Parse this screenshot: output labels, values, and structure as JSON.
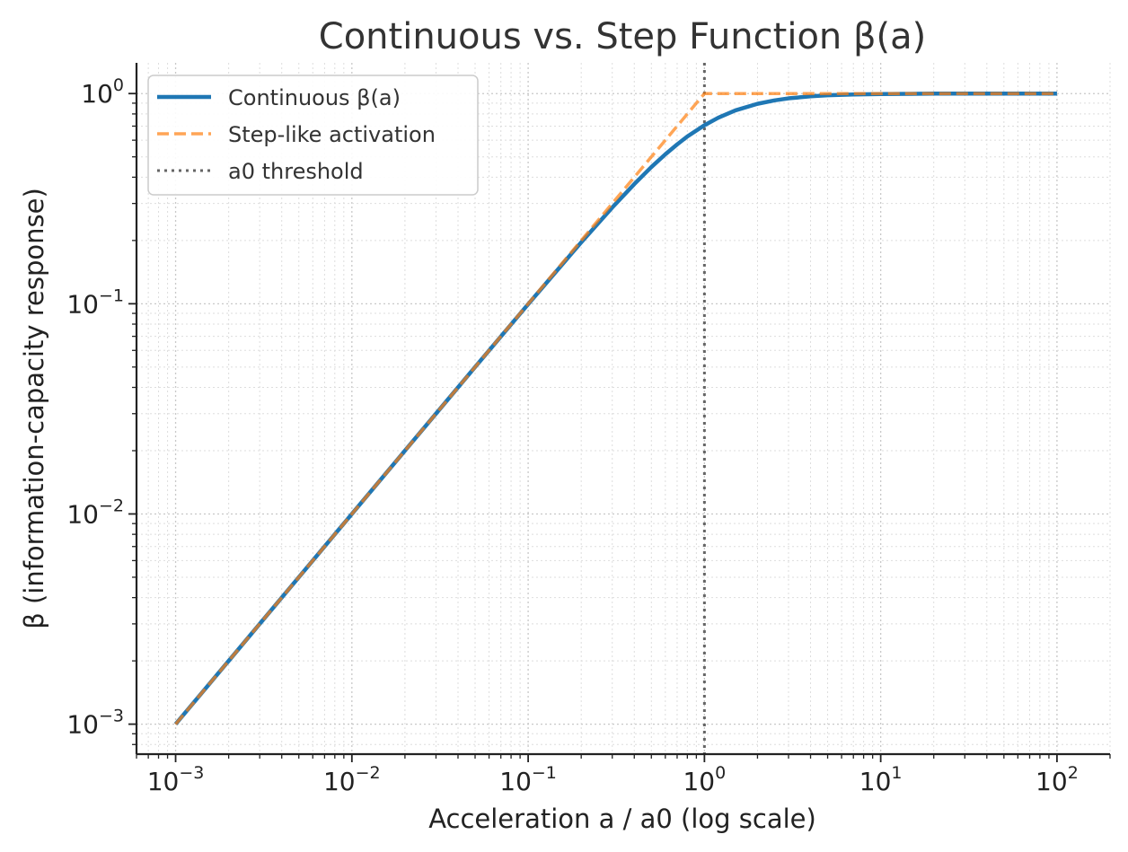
{
  "chart_data": {
    "type": "line",
    "title": "Continuous vs. Step Function β(a)",
    "xlabel": "Acceleration a / a0 (log scale)",
    "ylabel": "β (information-capacity response)",
    "xscale": "log",
    "yscale": "log",
    "xlim": [
      0.0006,
      200
    ],
    "ylim": [
      0.00072,
      1.4
    ],
    "x_ticks": [
      {
        "value": 0.001,
        "base": "10",
        "exp": "−3"
      },
      {
        "value": 0.01,
        "base": "10",
        "exp": "−2"
      },
      {
        "value": 0.1,
        "base": "10",
        "exp": "−1"
      },
      {
        "value": 1,
        "base": "10",
        "exp": "0"
      },
      {
        "value": 10,
        "base": "10",
        "exp": "1"
      },
      {
        "value": 100,
        "base": "10",
        "exp": "2"
      }
    ],
    "y_ticks": [
      {
        "value": 0.001,
        "base": "10",
        "exp": "−3"
      },
      {
        "value": 0.01,
        "base": "10",
        "exp": "−2"
      },
      {
        "value": 0.1,
        "base": "10",
        "exp": "−1"
      },
      {
        "value": 1,
        "base": "10",
        "exp": "0"
      }
    ],
    "grid": true,
    "legend_position": "top-left",
    "series": [
      {
        "name": "Continuous β(a)",
        "color": "#1f77b4",
        "style": "solid",
        "x": [
          0.001,
          0.002,
          0.005,
          0.01,
          0.02,
          0.05,
          0.1,
          0.15,
          0.2,
          0.3,
          0.4,
          0.5,
          0.6,
          0.7,
          0.8,
          1.0,
          1.2,
          1.5,
          2.0,
          2.5,
          3.0,
          4.0,
          5.0,
          7.0,
          10,
          20,
          50,
          100
        ],
        "y": [
          0.001,
          0.002,
          0.005,
          0.01,
          0.02,
          0.05,
          0.0995,
          0.148,
          0.196,
          0.287,
          0.371,
          0.447,
          0.514,
          0.573,
          0.625,
          0.707,
          0.768,
          0.832,
          0.894,
          0.928,
          0.949,
          0.97,
          0.981,
          0.99,
          0.995,
          0.999,
          1.0,
          1.0
        ]
      },
      {
        "name": "Step-like activation",
        "color": "#ff7f0e",
        "style": "dashed",
        "x": [
          0.001,
          1.0,
          100
        ],
        "y": [
          0.001,
          1.0,
          1.0
        ]
      }
    ],
    "reference_lines": [
      {
        "name": "a0 threshold",
        "orientation": "vertical",
        "x": 1.0,
        "color": "#666666",
        "style": "dotted"
      }
    ]
  }
}
